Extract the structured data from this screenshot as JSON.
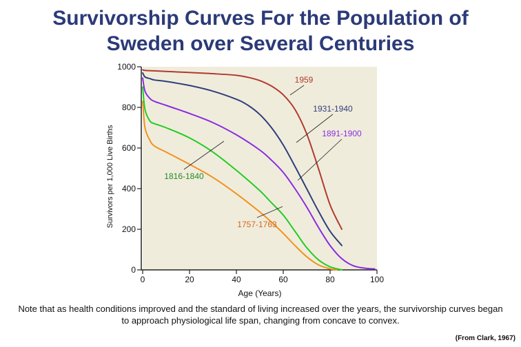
{
  "title_line1": "Survivorship Curves For the Population of",
  "title_line2": "Sweden over Several Centuries",
  "note": "Note that as health conditions improved and the standard of living increased over the years, the survivorship curves began to approach physiological life span, changing from concave to convex.",
  "credit": "(From Clark, 1967)",
  "chart_data": {
    "type": "line",
    "xlabel": "Age (Years)",
    "ylabel": "Survivors per 1,000 Live Births",
    "xlim": [
      0,
      100
    ],
    "ylim": [
      0,
      1000
    ],
    "xticks": [
      0,
      20,
      40,
      60,
      80,
      100
    ],
    "yticks": [
      0,
      200,
      400,
      600,
      800,
      1000
    ],
    "grid": false,
    "plot_background": "#f0ecdc",
    "series": [
      {
        "name": "1959",
        "color": "#b03a2e",
        "label_color": "#b03a2e",
        "x": [
          0,
          1,
          5,
          10,
          20,
          30,
          40,
          45,
          50,
          55,
          60,
          65,
          70,
          75,
          80,
          85
        ],
        "y": [
          985,
          982,
          980,
          977,
          972,
          966,
          958,
          948,
          932,
          905,
          862,
          790,
          670,
          500,
          320,
          200
        ]
      },
      {
        "name": "1931-1940",
        "color": "#2e3e7a",
        "label_color": "#2e3e7a",
        "x": [
          0,
          1,
          3,
          5,
          10,
          20,
          30,
          40,
          45,
          50,
          55,
          60,
          65,
          70,
          75,
          80,
          85
        ],
        "y": [
          970,
          950,
          942,
          935,
          928,
          908,
          880,
          840,
          810,
          765,
          700,
          615,
          510,
          400,
          290,
          190,
          120
        ]
      },
      {
        "name": "1891-1900",
        "color": "#8a2be2",
        "label_color": "#8a2be2",
        "x": [
          0,
          1,
          3,
          5,
          10,
          20,
          30,
          40,
          50,
          55,
          60,
          65,
          70,
          75,
          80,
          85,
          90,
          95,
          99
        ],
        "y": [
          945,
          880,
          845,
          830,
          810,
          770,
          725,
          665,
          590,
          540,
          480,
          400,
          310,
          210,
          120,
          55,
          20,
          8,
          5
        ]
      },
      {
        "name": "1816-1840",
        "color": "#22cc22",
        "label_color": "#228B22",
        "x": [
          0,
          1,
          3,
          5,
          10,
          20,
          30,
          40,
          50,
          55,
          60,
          65,
          70,
          75,
          80,
          85
        ],
        "y": [
          900,
          790,
          735,
          720,
          700,
          650,
          580,
          490,
          390,
          330,
          270,
          190,
          110,
          50,
          15,
          0
        ]
      },
      {
        "name": "1757-1763",
        "color": "#f0921e",
        "label_color": "#d2691e",
        "x": [
          0,
          1,
          3,
          5,
          10,
          20,
          30,
          40,
          50,
          55,
          60,
          65,
          70,
          75,
          80,
          83
        ],
        "y": [
          830,
          700,
          640,
          610,
          580,
          520,
          455,
          375,
          285,
          235,
          180,
          120,
          65,
          25,
          5,
          0
        ]
      }
    ],
    "annotations": [
      {
        "series": "1959",
        "text": "1959"
      },
      {
        "series": "1931-1940",
        "text": "1931-1940"
      },
      {
        "series": "1891-1900",
        "text": "1891-1900"
      },
      {
        "series": "1816-1840",
        "text": "1816-1840"
      },
      {
        "series": "1757-1763",
        "text": "1757-1763"
      }
    ]
  }
}
